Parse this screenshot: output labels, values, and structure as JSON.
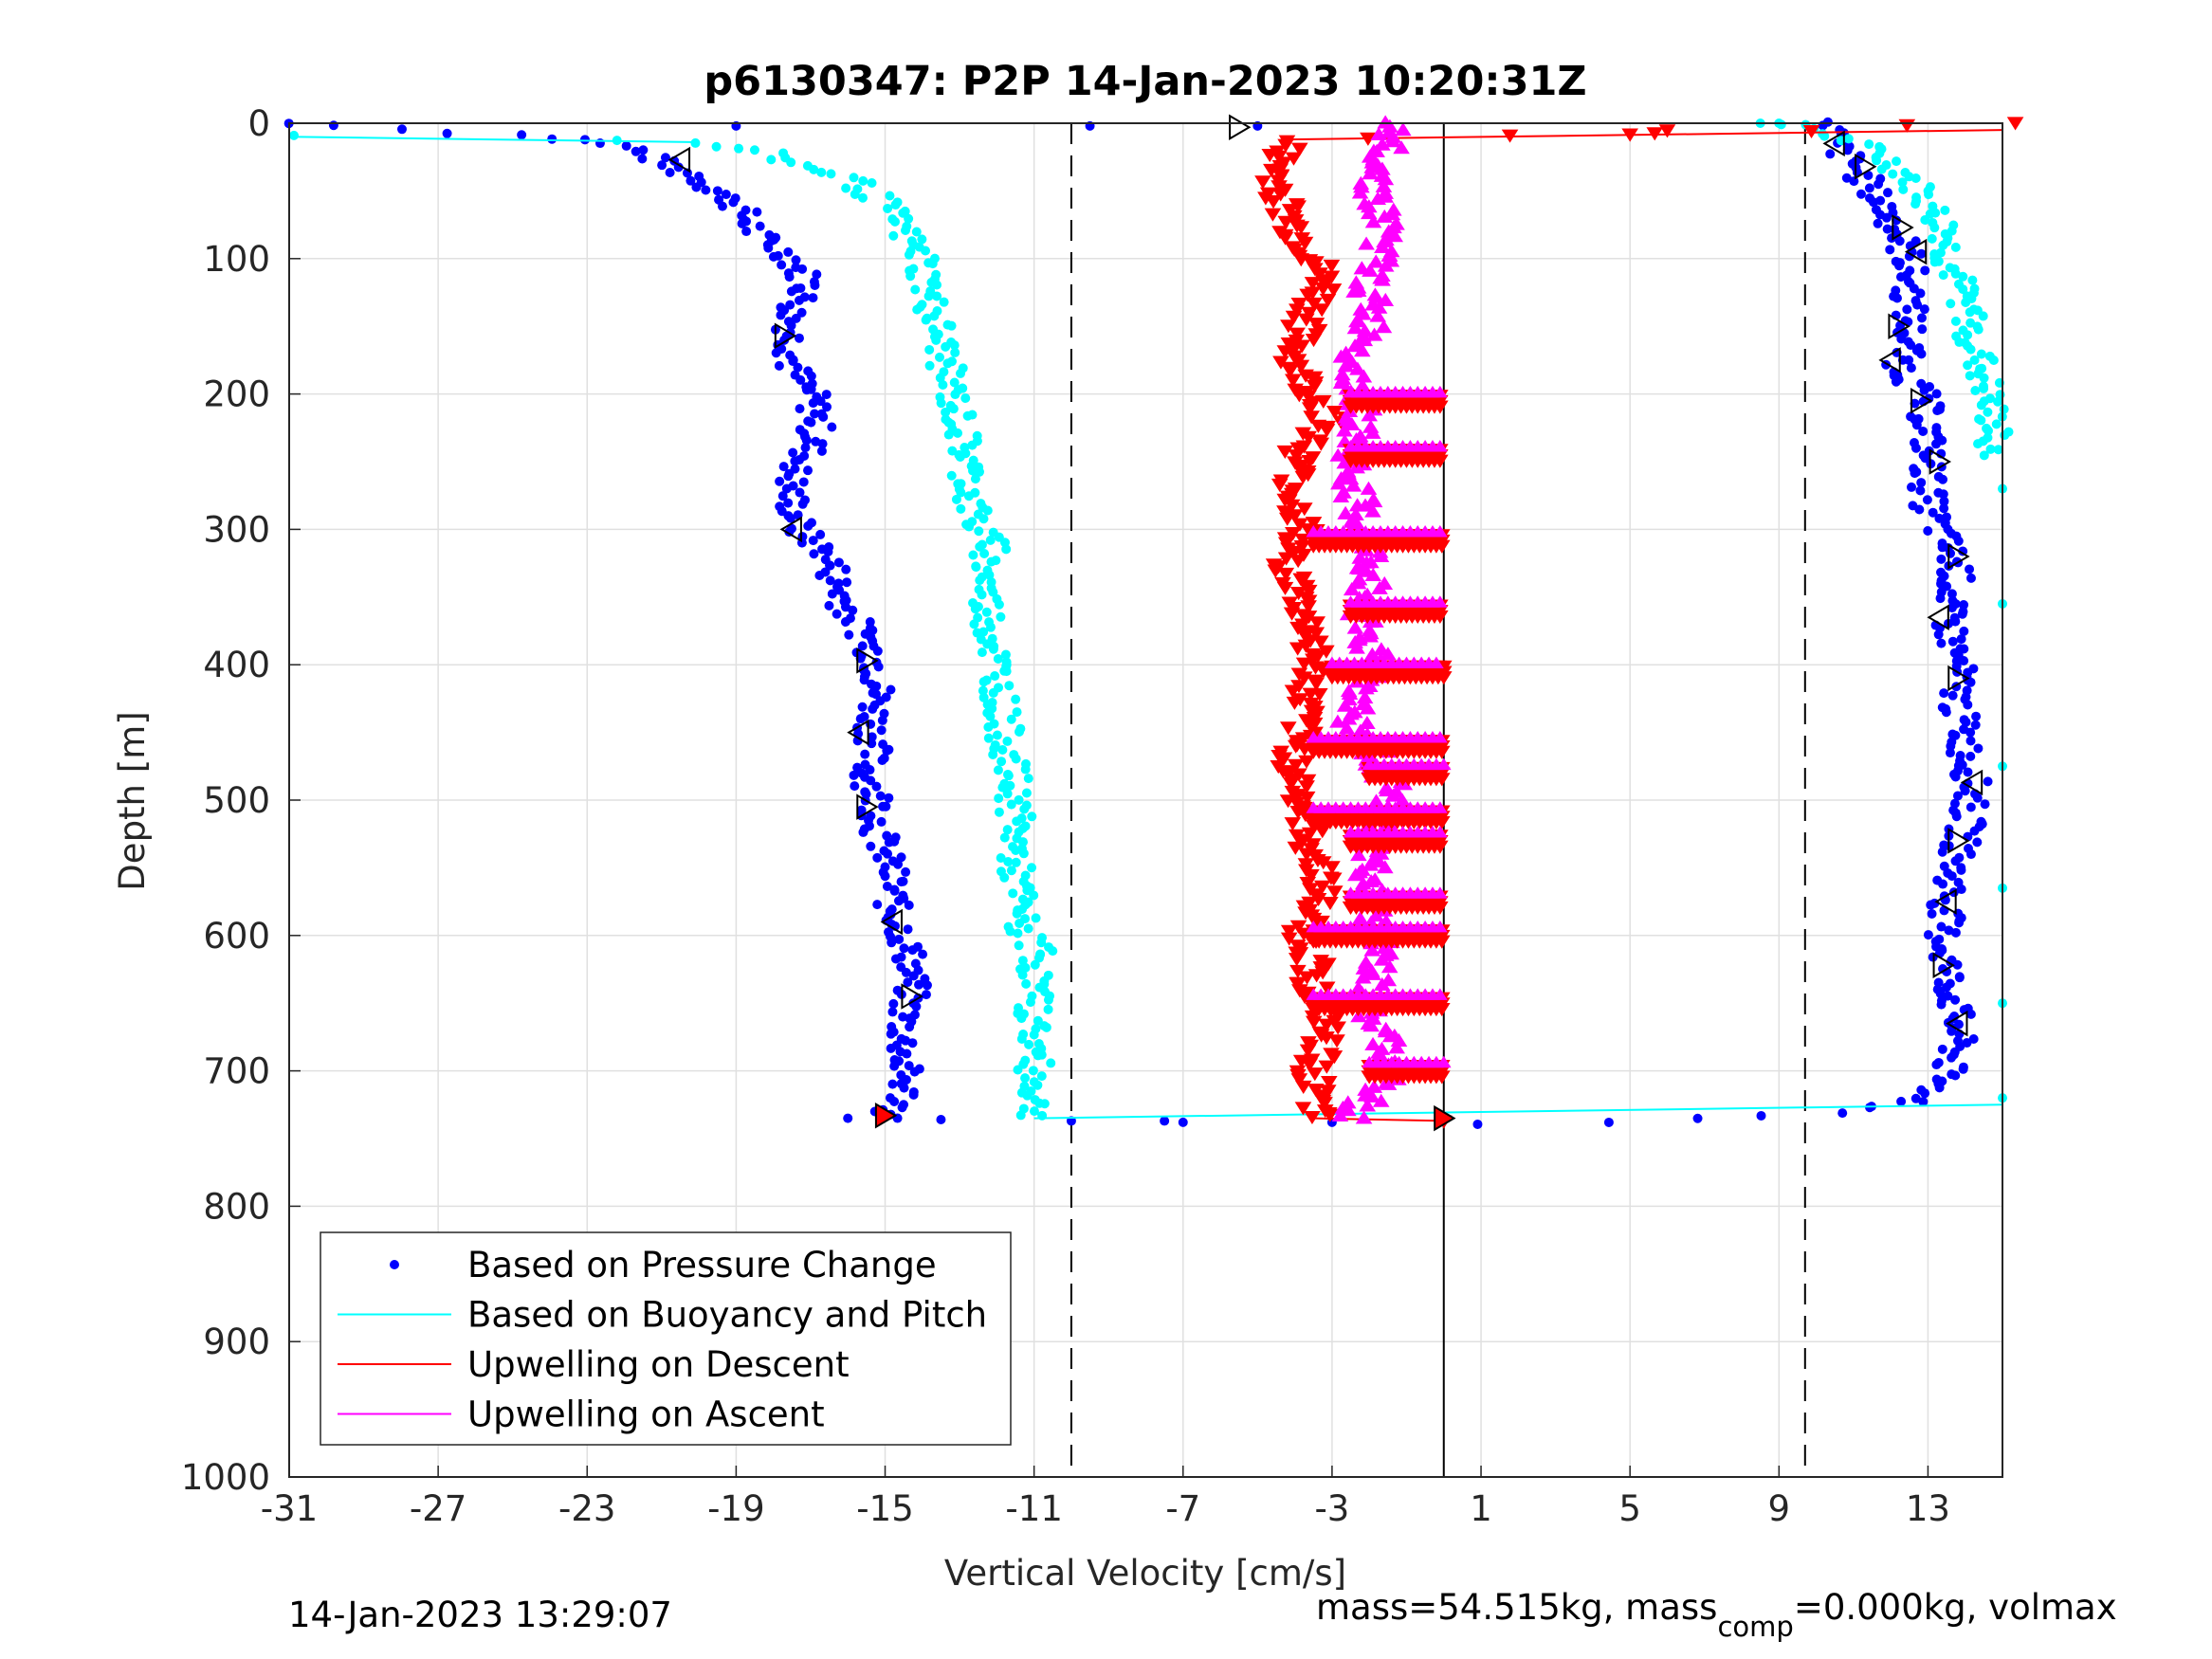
{
  "chart_data": {
    "type": "scatter",
    "title": "p6130347: P2P 14-Jan-2023 10:20:31Z",
    "xlabel": "Vertical Velocity [cm/s]",
    "ylabel": "Depth [m]",
    "xlim": [
      -31,
      15
    ],
    "ylim": [
      0,
      1000
    ],
    "y_reversed": true,
    "x_ticks": [
      -31,
      -27,
      -23,
      -19,
      -15,
      -11,
      -7,
      -3,
      1,
      5,
      9,
      13
    ],
    "y_ticks": [
      0,
      100,
      200,
      300,
      400,
      500,
      600,
      700,
      800,
      900,
      1000
    ],
    "grid": true,
    "legend_position": "bottom-left",
    "legend": [
      {
        "label": "Based on Pressure Change",
        "color": "#0000ff",
        "marker": "dot"
      },
      {
        "label": "Based on Buoyancy and Pitch",
        "color": "#00ffff",
        "marker": "line"
      },
      {
        "label": "Upwelling on Descent",
        "color": "#ff0000",
        "marker": "line"
      },
      {
        "label": "Upwelling on Ascent",
        "color": "#ff00ff",
        "marker": "line"
      }
    ],
    "reference_lines": [
      {
        "x": -10,
        "style": "dashed"
      },
      {
        "x": 9.7,
        "style": "dashed"
      },
      {
        "x": 0,
        "style": "solid"
      }
    ],
    "series": [
      {
        "name": "Based on Pressure Change",
        "color": "#0000ff",
        "segments": [
          {
            "depth": [
              0,
              10,
              20,
              30,
              40,
              60,
              80,
              100,
              120,
              140,
              160,
              180,
              200,
              220,
              240,
              260,
              280,
              300,
              320,
              340,
              360,
              380,
              400,
              420,
              440,
              460,
              480,
              500,
              520,
              540,
              560,
              580,
              600,
              620,
              640,
              660,
              680,
              700,
              720,
              735
            ],
            "velocity": [
              -31,
              -24,
              -21.5,
              -21,
              -20,
              -19,
              -18.5,
              -17.5,
              -17,
              -17.5,
              -17.5,
              -17.5,
              -17,
              -16.8,
              -17,
              -17.5,
              -17.5,
              -17.3,
              -16.5,
              -16.3,
              -16,
              -15.5,
              -15.2,
              -15.2,
              -15.3,
              -15.3,
              -15.5,
              -15.2,
              -15.2,
              -15,
              -14.8,
              -14.8,
              -14.5,
              -14.3,
              -14.3,
              -14.5,
              -14.5,
              -14.5,
              -14.5,
              -15
            ]
          },
          {
            "depth": [
              0,
              15,
              30,
              50,
              70,
              100,
              130,
              160,
              180,
              200,
              220,
              250,
              280,
              300,
              330,
              360,
              400,
              430,
              460,
              490,
              520,
              550,
              580,
              600,
              620,
              650,
              680,
              700,
              720,
              730,
              735,
              738,
              740
            ],
            "velocity": [
              10.5,
              10.5,
              11,
              11.5,
              12,
              12.5,
              12.5,
              12.5,
              12.3,
              12.8,
              13,
              13,
              13,
              13.3,
              13.8,
              13.5,
              13.8,
              13.8,
              14,
              14.2,
              14,
              13.7,
              13.5,
              13.4,
              13.5,
              13.7,
              13.8,
              13.5,
              13,
              11,
              7,
              3,
              0
            ]
          }
        ],
        "outliers": [
          [
            -19,
            2
          ],
          [
            -9.5,
            2
          ],
          [
            -5,
            2
          ],
          [
            -16,
            735
          ],
          [
            -13.5,
            736
          ],
          [
            -10,
            737
          ],
          [
            -7.5,
            737
          ],
          [
            -7,
            738
          ],
          [
            -3,
            738
          ]
        ]
      },
      {
        "name": "Based on Buoyancy and Pitch",
        "color": "#00ffff",
        "segments": [
          {
            "depth": [
              10,
              12,
              15,
              20,
              30,
              40,
              60,
              80,
              100,
              130,
              160,
              190,
              220,
              250,
              280,
              300,
              315,
              320,
              350,
              400,
              450,
              500,
              550,
              600,
              610,
              630,
              650,
              680,
              700,
              720,
              735
            ],
            "velocity": [
              -31,
              -22,
              -20,
              -18.5,
              -17.5,
              -16,
              -15,
              -14.5,
              -14,
              -13.8,
              -13.5,
              -13.3,
              -13,
              -12.8,
              -12.7,
              -12.5,
              -12,
              -12.3,
              -12.3,
              -12,
              -11.8,
              -11.5,
              -11.5,
              -11.3,
              -10.8,
              -11,
              -11,
              -11,
              -11,
              -11,
              -11
            ]
          },
          {
            "depth": [
              735,
              725
            ],
            "velocity": [
              -11,
              15
            ]
          },
          {
            "depth": [
              0,
              20,
              40,
              60,
              80,
              100,
              130,
              160,
              190,
              220,
              245
            ],
            "velocity": [
              9.5,
              11.5,
              12.5,
              13,
              13.5,
              13.5,
              14,
              14.2,
              14.5,
              14.7,
              14.8
            ]
          }
        ],
        "outliers": [
          [
            8.5,
            0
          ],
          [
            9,
            0
          ],
          [
            15,
            270
          ],
          [
            15,
            355
          ],
          [
            15,
            475
          ],
          [
            15,
            565
          ],
          [
            15,
            650
          ],
          [
            15,
            720
          ]
        ]
      },
      {
        "name": "Upwelling on Descent",
        "color": "#ff0000",
        "segments": [
          {
            "depth": [
              0,
              5,
              12,
              20,
              40,
              60,
              80,
              100,
              120,
              140,
              160,
              180,
              200,
              220,
              240,
              260,
              280,
              300,
              320,
              340,
              360,
              380,
              400,
              420,
              440,
              460,
              480,
              500,
              520,
              540,
              560,
              580,
              600,
              620,
              640,
              660,
              680,
              700,
              720,
              735
            ],
            "velocity": [
              15,
              9,
              -4.2,
              -4.3,
              -4.5,
              -4.3,
              -4,
              -3.5,
              -3.2,
              -3.6,
              -3.9,
              -4,
              -3.5,
              -3,
              -3.8,
              -4,
              -4,
              -3.8,
              -4.2,
              -4,
              -3.8,
              -3.5,
              -3.5,
              -3.7,
              -3.8,
              -4,
              -4,
              -3.8,
              -3.7,
              -3.5,
              -3.2,
              -3.5,
              -3.8,
              -3.5,
              -3.5,
              -3.2,
              -3.3,
              -3.5,
              -3.5,
              -3.5
            ]
          },
          {
            "depth": [
              735,
              737
            ],
            "velocity": [
              -3.5,
              0
            ]
          }
        ],
        "outliers": [
          [
            5,
            8
          ],
          [
            6,
            5
          ],
          [
            0,
            737
          ]
        ]
      },
      {
        "name": "Upwelling on Ascent",
        "color": "#ff00ff",
        "segments": [
          {
            "depth": [
              0,
              20,
              40,
              60,
              80,
              100,
              120,
              140,
              160,
              180,
              200,
              220,
              240,
              260,
              280,
              300,
              320,
              340,
              360,
              380,
              400,
              420,
              440,
              460,
              480,
              500,
              520,
              540,
              560,
              580,
              600,
              620,
              640,
              660,
              680,
              700,
              720,
              735
            ],
            "velocity": [
              -1.5,
              -1.5,
              -1.8,
              -1.8,
              -1.5,
              -1.8,
              -2,
              -2,
              -2,
              -2.5,
              -2.2,
              -2.2,
              -2.5,
              -2.5,
              -2.3,
              -2.3,
              -2,
              -2,
              -2.2,
              -2,
              -1.8,
              -2.2,
              -2.5,
              -2,
              -1.5,
              -1.5,
              -1.8,
              -2,
              -2,
              -2,
              -1.8,
              -1.8,
              -2,
              -2,
              -1.5,
              -1.5,
              -2,
              -2.5
            ]
          }
        ],
        "bands": [
          {
            "depth": 205,
            "from": -2.5,
            "to": 0
          },
          {
            "depth": 245,
            "from": -2.5,
            "to": 0
          },
          {
            "depth": 308,
            "from": -3.5,
            "to": 0
          },
          {
            "depth": 360,
            "from": -2.5,
            "to": 0
          },
          {
            "depth": 405,
            "from": -3,
            "to": 0
          },
          {
            "depth": 460,
            "from": -3.5,
            "to": 0
          },
          {
            "depth": 480,
            "from": -2,
            "to": 0
          },
          {
            "depth": 512,
            "from": -3.5,
            "to": 0
          },
          {
            "depth": 530,
            "from": -2.5,
            "to": 0
          },
          {
            "depth": 575,
            "from": -2.5,
            "to": 0
          },
          {
            "depth": 600,
            "from": -3.5,
            "to": 0
          },
          {
            "depth": 650,
            "from": -3.5,
            "to": 0
          },
          {
            "depth": 700,
            "from": -2,
            "to": 0
          }
        ]
      }
    ],
    "triangle_markers": [
      {
        "v": -5.5,
        "d": 3,
        "dir": "right",
        "filled": false
      },
      {
        "v": -20.5,
        "d": 27,
        "dir": "left",
        "filled": false
      },
      {
        "v": -17.7,
        "d": 157,
        "dir": "right",
        "filled": false
      },
      {
        "v": -17.5,
        "d": 300,
        "dir": "left",
        "filled": false
      },
      {
        "v": -15.5,
        "d": 397,
        "dir": "right",
        "filled": false
      },
      {
        "v": -15.7,
        "d": 450,
        "dir": "left",
        "filled": false
      },
      {
        "v": -15.5,
        "d": 505,
        "dir": "right",
        "filled": false
      },
      {
        "v": -14.8,
        "d": 590,
        "dir": "left",
        "filled": false
      },
      {
        "v": -14.3,
        "d": 645,
        "dir": "right",
        "filled": false
      },
      {
        "v": -15,
        "d": 733,
        "dir": "right",
        "filled": true
      },
      {
        "v": 0,
        "d": 735,
        "dir": "right",
        "filled": true
      },
      {
        "v": 10.5,
        "d": 15,
        "dir": "left",
        "filled": false
      },
      {
        "v": 11.3,
        "d": 32,
        "dir": "right",
        "filled": false
      },
      {
        "v": 12.3,
        "d": 77,
        "dir": "right",
        "filled": false
      },
      {
        "v": 12.7,
        "d": 95,
        "dir": "left",
        "filled": false
      },
      {
        "v": 12.2,
        "d": 150,
        "dir": "right",
        "filled": false
      },
      {
        "v": 12,
        "d": 175,
        "dir": "left",
        "filled": false
      },
      {
        "v": 12.8,
        "d": 205,
        "dir": "right",
        "filled": false
      },
      {
        "v": 13.3,
        "d": 250,
        "dir": "right",
        "filled": false
      },
      {
        "v": 13.8,
        "d": 320,
        "dir": "right",
        "filled": false
      },
      {
        "v": 13.3,
        "d": 365,
        "dir": "left",
        "filled": false
      },
      {
        "v": 13.8,
        "d": 410,
        "dir": "right",
        "filled": false
      },
      {
        "v": 14.2,
        "d": 487,
        "dir": "left",
        "filled": false
      },
      {
        "v": 13.8,
        "d": 530,
        "dir": "right",
        "filled": false
      },
      {
        "v": 13.5,
        "d": 575,
        "dir": "left",
        "filled": false
      },
      {
        "v": 13.4,
        "d": 622,
        "dir": "right",
        "filled": false
      },
      {
        "v": 13.8,
        "d": 665,
        "dir": "left",
        "filled": false
      }
    ]
  },
  "footer": {
    "timestamp": "14-Jan-2023 13:29:07",
    "mass_text_prefix": "mass=54.515kg, mass",
    "mass_text_sub": "comp",
    "mass_text_suffix": "=0.000kg, volmax"
  }
}
